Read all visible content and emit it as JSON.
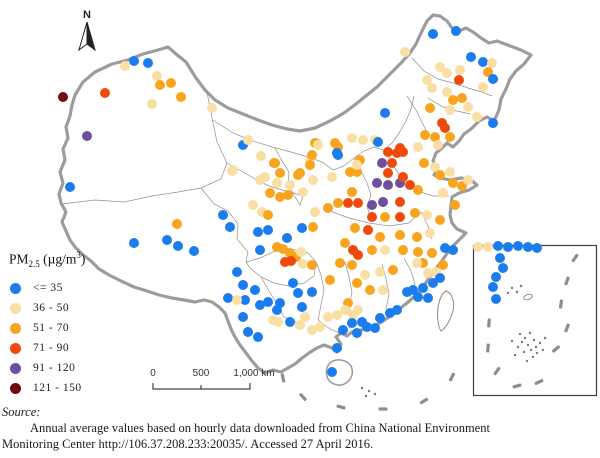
{
  "north_arrow": {
    "label": "N"
  },
  "legend": {
    "title": {
      "base": "PM",
      "sub": "2.5",
      "mid": " (µg/m",
      "sup": "3",
      "end": ")"
    },
    "classes": [
      {
        "label": "<= 35",
        "color": "#1b7cee"
      },
      {
        "label": "36 - 50",
        "color": "#fadfa4"
      },
      {
        "label": "51 - 70",
        "color": "#f8a41e"
      },
      {
        "label": "71 - 90",
        "color": "#ee4a0e"
      },
      {
        "label": "91 - 120",
        "color": "#6f4f9b"
      },
      {
        "label": "121 - 150",
        "color": "#700b10"
      }
    ]
  },
  "scale_bar": {
    "labels": [
      "0",
      "500",
      "1,000 km"
    ]
  },
  "source": {
    "label": "Source:",
    "line1": "Annual average values based on hourly data downloaded from China National Environment",
    "line2": "Monitoring Center http://106.37.208.233:20035/. Accessed 27 April 2016."
  },
  "stations": {
    "encoding": "[x, y, classIndex] where classIndex refers to legend.classes",
    "points": [
      [
        125,
        66,
        1
      ],
      [
        134,
        61,
        0
      ],
      [
        148,
        63,
        0
      ],
      [
        157,
        76,
        1
      ],
      [
        160,
        85,
        2
      ],
      [
        171,
        83,
        2
      ],
      [
        181,
        97,
        2
      ],
      [
        152,
        104,
        1
      ],
      [
        63,
        97,
        5
      ],
      [
        105,
        93,
        3
      ],
      [
        87,
        136,
        4
      ],
      [
        70,
        187,
        0
      ],
      [
        212,
        108,
        1
      ],
      [
        385,
        113,
        0
      ],
      [
        405,
        52,
        1
      ],
      [
        433,
        34,
        0
      ],
      [
        456,
        31,
        0
      ],
      [
        471,
        57,
        0
      ],
      [
        483,
        62,
        0
      ],
      [
        492,
        63,
        1
      ],
      [
        488,
        72,
        2
      ],
      [
        493,
        79,
        0
      ],
      [
        440,
        67,
        1
      ],
      [
        447,
        73,
        1
      ],
      [
        460,
        70,
        1
      ],
      [
        459,
        80,
        3
      ],
      [
        427,
        80,
        1
      ],
      [
        432,
        88,
        1
      ],
      [
        447,
        92,
        1
      ],
      [
        462,
        98,
        2
      ],
      [
        483,
        87,
        1
      ],
      [
        453,
        100,
        2
      ],
      [
        450,
        110,
        1
      ],
      [
        430,
        108,
        2
      ],
      [
        468,
        107,
        1
      ],
      [
        477,
        117,
        1
      ],
      [
        493,
        123,
        0
      ],
      [
        442,
        123,
        3
      ],
      [
        445,
        128,
        3
      ],
      [
        425,
        135,
        2
      ],
      [
        435,
        137,
        2
      ],
      [
        450,
        137,
        2
      ],
      [
        418,
        147,
        1
      ],
      [
        403,
        152,
        3
      ],
      [
        424,
        163,
        2
      ],
      [
        438,
        145,
        1
      ],
      [
        243,
        145,
        0
      ],
      [
        248,
        140,
        1
      ],
      [
        261,
        156,
        1
      ],
      [
        274,
        163,
        2
      ],
      [
        232,
        171,
        1
      ],
      [
        298,
        175,
        2
      ],
      [
        310,
        160,
        1
      ],
      [
        317,
        143,
        1
      ],
      [
        338,
        147,
        2
      ],
      [
        338,
        155,
        0
      ],
      [
        352,
        138,
        1
      ],
      [
        363,
        140,
        1
      ],
      [
        360,
        160,
        2
      ],
      [
        375,
        140,
        1
      ],
      [
        388,
        152,
        3
      ],
      [
        382,
        163,
        4
      ],
      [
        392,
        163,
        3
      ],
      [
        357,
        172,
        2
      ],
      [
        315,
        143,
        2
      ],
      [
        312,
        155,
        2
      ],
      [
        335,
        143,
        2
      ],
      [
        337,
        153,
        0
      ],
      [
        378,
        142,
        0
      ],
      [
        397,
        153,
        3
      ],
      [
        400,
        148,
        3
      ],
      [
        357,
        165,
        1
      ],
      [
        350,
        172,
        2
      ],
      [
        332,
        177,
        1
      ],
      [
        313,
        180,
        1
      ],
      [
        303,
        192,
        1
      ],
      [
        352,
        192,
        2
      ],
      [
        377,
        183,
        4
      ],
      [
        388,
        185,
        4
      ],
      [
        400,
        183,
        4
      ],
      [
        410,
        185,
        3
      ],
      [
        418,
        190,
        2
      ],
      [
        400,
        202,
        3
      ],
      [
        383,
        202,
        4
      ],
      [
        372,
        205,
        4
      ],
      [
        358,
        203,
        3
      ],
      [
        348,
        203,
        3
      ],
      [
        338,
        203,
        2
      ],
      [
        328,
        208,
        2
      ],
      [
        315,
        212,
        1
      ],
      [
        372,
        217,
        3
      ],
      [
        385,
        217,
        2
      ],
      [
        400,
        217,
        3
      ],
      [
        415,
        213,
        2
      ],
      [
        427,
        215,
        1
      ],
      [
        388,
        173,
        3
      ],
      [
        403,
        177,
        3
      ],
      [
        435,
        167,
        1
      ],
      [
        440,
        175,
        2
      ],
      [
        450,
        172,
        1
      ],
      [
        453,
        183,
        2
      ],
      [
        443,
        193,
        1
      ],
      [
        455,
        205,
        2
      ],
      [
        462,
        186,
        2
      ],
      [
        468,
        180,
        1
      ],
      [
        440,
        220,
        2
      ],
      [
        368,
        230,
        3
      ],
      [
        355,
        228,
        2
      ],
      [
        380,
        237,
        2
      ],
      [
        400,
        235,
        2
      ],
      [
        417,
        237,
        2
      ],
      [
        430,
        233,
        1
      ],
      [
        345,
        243,
        2
      ],
      [
        353,
        250,
        3
      ],
      [
        358,
        255,
        3
      ],
      [
        372,
        250,
        2
      ],
      [
        385,
        250,
        1
      ],
      [
        403,
        250,
        2
      ],
      [
        418,
        252,
        2
      ],
      [
        432,
        253,
        2
      ],
      [
        445,
        248,
        0
      ],
      [
        453,
        250,
        0
      ],
      [
        423,
        263,
        2
      ],
      [
        443,
        265,
        2
      ],
      [
        436,
        272,
        1
      ],
      [
        233,
        170,
        1
      ],
      [
        260,
        180,
        1
      ],
      [
        265,
        177,
        1
      ],
      [
        275,
        163,
        2
      ],
      [
        280,
        173,
        2
      ],
      [
        277,
        183,
        1
      ],
      [
        270,
        193,
        2
      ],
      [
        280,
        197,
        2
      ],
      [
        290,
        185,
        1
      ],
      [
        288,
        195,
        2
      ],
      [
        253,
        205,
        1
      ],
      [
        310,
        165,
        2
      ],
      [
        300,
        173,
        2
      ],
      [
        318,
        145,
        1
      ],
      [
        223,
        215,
        0
      ],
      [
        230,
        227,
        0
      ],
      [
        262,
        212,
        1
      ],
      [
        268,
        215,
        2
      ],
      [
        302,
        228,
        0
      ],
      [
        313,
        227,
        2
      ],
      [
        268,
        230,
        0
      ],
      [
        134,
        243,
        0
      ],
      [
        167,
        240,
        0
      ],
      [
        178,
        246,
        0
      ],
      [
        194,
        251,
        0
      ],
      [
        177,
        224,
        2
      ],
      [
        258,
        232,
        0
      ],
      [
        237,
        272,
        0
      ],
      [
        260,
        250,
        0
      ],
      [
        287,
        238,
        0
      ],
      [
        277,
        247,
        2
      ],
      [
        283,
        249,
        2
      ],
      [
        290,
        253,
        2
      ],
      [
        296,
        257,
        2
      ],
      [
        291,
        261,
        3
      ],
      [
        301,
        252,
        1
      ],
      [
        303,
        264,
        1
      ],
      [
        228,
        298,
        0
      ],
      [
        243,
        285,
        0
      ],
      [
        245,
        300,
        0
      ],
      [
        255,
        290,
        0
      ],
      [
        260,
        305,
        0
      ],
      [
        243,
        317,
        0
      ],
      [
        248,
        332,
        0
      ],
      [
        258,
        337,
        0
      ],
      [
        268,
        302,
        0
      ],
      [
        280,
        303,
        0
      ],
      [
        277,
        310,
        0
      ],
      [
        237,
        300,
        1
      ],
      [
        273,
        320,
        1
      ],
      [
        278,
        322,
        1
      ],
      [
        290,
        322,
        0
      ],
      [
        300,
        325,
        1
      ],
      [
        302,
        307,
        0
      ],
      [
        330,
        280,
        2
      ],
      [
        348,
        303,
        2
      ],
      [
        285,
        262,
        3
      ],
      [
        312,
        265,
        2
      ],
      [
        340,
        263,
        2
      ],
      [
        352,
        265,
        2
      ],
      [
        365,
        275,
        1
      ],
      [
        380,
        272,
        1
      ],
      [
        393,
        270,
        2
      ],
      [
        417,
        263,
        1
      ],
      [
        428,
        273,
        1
      ],
      [
        293,
        283,
        0
      ],
      [
        298,
        293,
        0
      ],
      [
        312,
        292,
        0
      ],
      [
        357,
        283,
        2
      ],
      [
        370,
        290,
        2
      ],
      [
        383,
        290,
        1
      ],
      [
        358,
        310,
        1
      ],
      [
        345,
        310,
        1
      ],
      [
        337,
        315,
        1
      ],
      [
        328,
        317,
        1
      ],
      [
        320,
        327,
        1
      ],
      [
        312,
        330,
        1
      ],
      [
        353,
        315,
        1
      ],
      [
        305,
        317,
        1
      ],
      [
        407,
        292,
        0
      ],
      [
        413,
        290,
        0
      ],
      [
        423,
        288,
        0
      ],
      [
        418,
        297,
        0
      ],
      [
        428,
        298,
        0
      ],
      [
        397,
        310,
        0
      ],
      [
        390,
        313,
        0
      ],
      [
        380,
        318,
        0
      ],
      [
        433,
        283,
        0
      ],
      [
        440,
        278,
        0
      ],
      [
        362,
        322,
        0
      ],
      [
        367,
        327,
        0
      ],
      [
        375,
        328,
        0
      ],
      [
        352,
        323,
        0
      ],
      [
        343,
        330,
        0
      ],
      [
        357,
        333,
        0
      ],
      [
        337,
        348,
        0
      ],
      [
        332,
        372,
        0
      ],
      [
        478,
        247,
        1
      ],
      [
        488,
        247,
        1
      ],
      [
        498,
        246,
        0
      ],
      [
        508,
        247,
        0
      ],
      [
        518,
        246,
        0
      ],
      [
        528,
        247,
        0
      ],
      [
        537,
        248,
        0
      ],
      [
        500,
        258,
        0
      ],
      [
        503,
        268,
        0
      ],
      [
        496,
        277,
        0
      ],
      [
        493,
        287,
        0
      ],
      [
        496,
        299,
        0
      ]
    ]
  },
  "nine_dash_line": {
    "main_dashes": [
      [
        283,
        378,
        78
      ],
      [
        303,
        397,
        48
      ],
      [
        341,
        407,
        15
      ],
      [
        383,
        409,
        0
      ],
      [
        424,
        401,
        -32
      ],
      [
        452,
        377,
        -62
      ]
    ],
    "main_specks": [
      [
        362,
        388
      ],
      [
        369,
        391
      ],
      [
        375,
        394
      ],
      [
        366,
        396
      ]
    ],
    "inset_dashes": [
      [
        575,
        258,
        -55
      ],
      [
        567,
        281,
        -70
      ],
      [
        561,
        304,
        -82
      ],
      [
        567,
        328,
        -70
      ],
      [
        556,
        349,
        -40
      ],
      [
        497,
        299,
        -70
      ],
      [
        489,
        323,
        -85
      ],
      [
        488,
        348,
        -85
      ],
      [
        497,
        371,
        -55
      ],
      [
        517,
        386,
        -15
      ],
      [
        539,
        382,
        -25
      ]
    ],
    "inset_specks": [
      [
        520,
        334
      ],
      [
        525,
        338
      ],
      [
        530,
        333
      ],
      [
        534,
        340
      ],
      [
        528,
        345
      ],
      [
        522,
        342
      ],
      [
        536,
        347
      ],
      [
        540,
        343
      ],
      [
        531,
        350
      ],
      [
        524,
        352
      ],
      [
        537,
        353
      ],
      [
        543,
        350
      ],
      [
        518,
        347
      ],
      [
        545,
        338
      ],
      [
        512,
        341
      ],
      [
        533,
        357
      ],
      [
        527,
        361
      ],
      [
        515,
        355
      ],
      [
        512,
        288
      ],
      [
        517,
        292
      ],
      [
        521,
        286
      ],
      [
        508,
        293
      ]
    ]
  }
}
